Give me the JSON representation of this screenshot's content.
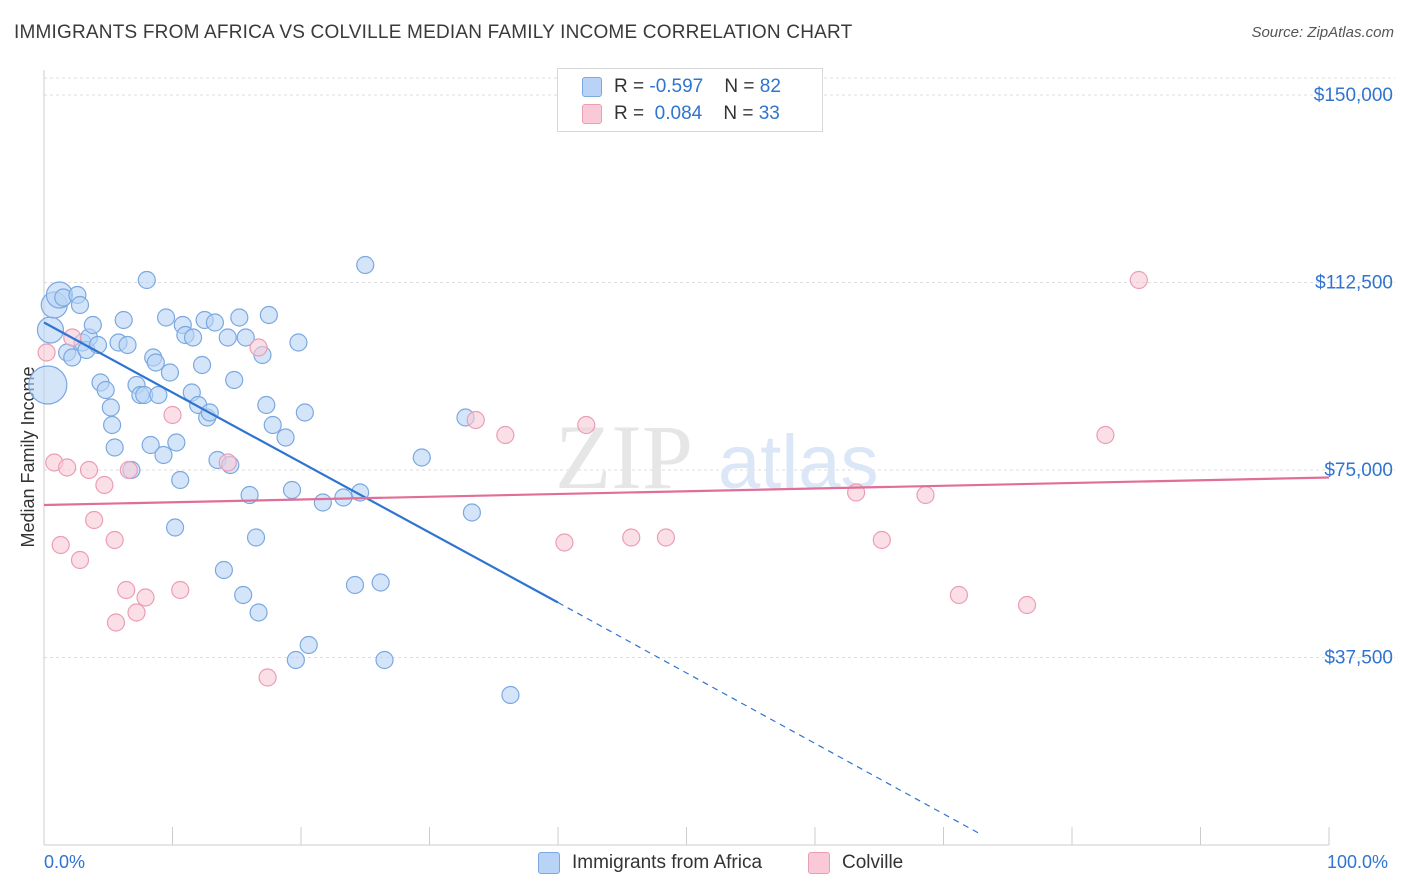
{
  "title": "IMMIGRANTS FROM AFRICA VS COLVILLE MEDIAN FAMILY INCOME CORRELATION CHART",
  "source": "Source: ZipAtlas.com",
  "watermark": {
    "zip": "ZIP",
    "atlas": "atlas"
  },
  "legend_top": [
    {
      "r_label": "R = ",
      "r_value": "-0.597",
      "n_label": "N = ",
      "n_value": "82"
    },
    {
      "r_label": "R = ",
      "r_value": "0.084",
      "n_label": "N = ",
      "n_value": "33"
    }
  ],
  "colors": {
    "blue_fill": "#b8d3f5",
    "blue_stroke": "#7aa8e0",
    "blue_line": "#2f74d0",
    "pink_fill": "#f9c9d7",
    "pink_stroke": "#eb9db4",
    "pink_line": "#e06e98",
    "axis_label": "#2f74d0",
    "grid": "#dddddd"
  },
  "chart_data": {
    "type": "scatter",
    "title": "IMMIGRANTS FROM AFRICA VS COLVILLE MEDIAN FAMILY INCOME CORRELATION CHART",
    "xlabel": "",
    "ylabel": "Median Family Income",
    "xlim": [
      0,
      100
    ],
    "ylim": [
      0,
      155000
    ],
    "x_tick_labels": [
      "0.0%",
      "100.0%"
    ],
    "y_ticks": [
      37500,
      75000,
      112500,
      150000
    ],
    "y_tick_labels": [
      "$37,500",
      "$75,000",
      "$112,500",
      "$150,000"
    ],
    "grid": true,
    "series": [
      {
        "name": "Immigrants from Africa",
        "color": "blue",
        "r": -0.597,
        "n": 82,
        "trend": {
          "x0": 0,
          "y0": 104500,
          "x1": 40,
          "y1": 48500,
          "dash_x1": 73,
          "dash_y1": 2000
        },
        "points": [
          [
            0.3,
            92000,
            3
          ],
          [
            0.5,
            103000,
            2
          ],
          [
            0.8,
            108000,
            2
          ],
          [
            1.2,
            110000,
            2
          ],
          [
            1.5,
            109500,
            1
          ],
          [
            1.8,
            98500,
            1
          ],
          [
            2.2,
            97500,
            1
          ],
          [
            2.6,
            110000,
            1
          ],
          [
            2.8,
            108000,
            1
          ],
          [
            3.0,
            100500,
            1
          ],
          [
            3.3,
            99000,
            1
          ],
          [
            3.5,
            101500,
            1
          ],
          [
            3.8,
            104000,
            1
          ],
          [
            4.2,
            100000,
            1
          ],
          [
            4.4,
            92500,
            1
          ],
          [
            4.8,
            91000,
            1
          ],
          [
            5.2,
            87500,
            1
          ],
          [
            5.3,
            84000,
            1
          ],
          [
            5.5,
            79500,
            1
          ],
          [
            5.8,
            100500,
            1
          ],
          [
            6.2,
            105000,
            1
          ],
          [
            6.5,
            100000,
            1
          ],
          [
            6.8,
            75000,
            1
          ],
          [
            7.2,
            92000,
            1
          ],
          [
            7.5,
            90000,
            1
          ],
          [
            7.8,
            90000,
            1
          ],
          [
            8.0,
            113000,
            1
          ],
          [
            8.3,
            80000,
            1
          ],
          [
            8.5,
            97500,
            1
          ],
          [
            8.7,
            96500,
            1
          ],
          [
            8.9,
            90000,
            1
          ],
          [
            9.3,
            78000,
            1
          ],
          [
            9.5,
            105500,
            1
          ],
          [
            9.8,
            94500,
            1
          ],
          [
            10.2,
            63500,
            1
          ],
          [
            10.3,
            80500,
            1
          ],
          [
            10.6,
            73000,
            1
          ],
          [
            10.8,
            104000,
            1
          ],
          [
            11.0,
            102000,
            1
          ],
          [
            11.5,
            90500,
            1
          ],
          [
            11.6,
            101500,
            1
          ],
          [
            12.0,
            88000,
            1
          ],
          [
            12.3,
            96000,
            1
          ],
          [
            12.5,
            105000,
            1
          ],
          [
            12.7,
            85500,
            1
          ],
          [
            12.9,
            86500,
            1
          ],
          [
            13.3,
            104500,
            1
          ],
          [
            13.5,
            77000,
            1
          ],
          [
            14.0,
            55000,
            1
          ],
          [
            14.3,
            101500,
            1
          ],
          [
            14.5,
            76000,
            1
          ],
          [
            14.8,
            93000,
            1
          ],
          [
            15.2,
            105500,
            1
          ],
          [
            15.5,
            50000,
            1
          ],
          [
            15.7,
            101500,
            1
          ],
          [
            16.0,
            70000,
            1
          ],
          [
            16.5,
            61500,
            1
          ],
          [
            16.7,
            46500,
            1
          ],
          [
            17.0,
            98000,
            1
          ],
          [
            17.3,
            88000,
            1
          ],
          [
            17.5,
            106000,
            1
          ],
          [
            17.8,
            84000,
            1
          ],
          [
            18.8,
            81500,
            1
          ],
          [
            19.3,
            71000,
            1
          ],
          [
            19.6,
            37000,
            1
          ],
          [
            19.8,
            100500,
            1
          ],
          [
            20.3,
            86500,
            1
          ],
          [
            20.6,
            40000,
            1
          ],
          [
            21.7,
            68500,
            1
          ],
          [
            23.3,
            69500,
            1
          ],
          [
            24.2,
            52000,
            1
          ],
          [
            24.6,
            70500,
            1
          ],
          [
            25.0,
            116000,
            1
          ],
          [
            26.2,
            52500,
            1
          ],
          [
            26.5,
            37000,
            1
          ],
          [
            29.4,
            77500,
            1
          ],
          [
            32.8,
            85500,
            1
          ],
          [
            33.3,
            66500,
            1
          ],
          [
            36.3,
            30000,
            1
          ]
        ]
      },
      {
        "name": "Colville",
        "color": "pink",
        "r": 0.084,
        "n": 33,
        "trend": {
          "x0": 0,
          "y0": 68000,
          "x1": 100,
          "y1": 73500
        },
        "points": [
          [
            0.2,
            98500
          ],
          [
            0.8,
            76500
          ],
          [
            1.3,
            60000
          ],
          [
            1.8,
            75500
          ],
          [
            2.2,
            101500
          ],
          [
            2.8,
            57000
          ],
          [
            3.5,
            75000
          ],
          [
            3.9,
            65000
          ],
          [
            4.7,
            72000
          ],
          [
            5.5,
            61000
          ],
          [
            5.6,
            44500
          ],
          [
            6.4,
            51000
          ],
          [
            6.6,
            75000
          ],
          [
            7.2,
            46500
          ],
          [
            7.9,
            49500
          ],
          [
            10.0,
            86000
          ],
          [
            10.6,
            51000
          ],
          [
            14.3,
            76500
          ],
          [
            16.7,
            99500
          ],
          [
            17.4,
            33500
          ],
          [
            33.6,
            85000
          ],
          [
            35.9,
            82000
          ],
          [
            40.5,
            60500
          ],
          [
            42.2,
            84000
          ],
          [
            45.7,
            61500
          ],
          [
            48.4,
            61500
          ],
          [
            63.2,
            70500
          ],
          [
            65.2,
            61000
          ],
          [
            68.6,
            70000
          ],
          [
            71.2,
            50000
          ],
          [
            76.5,
            48000
          ],
          [
            82.6,
            82000
          ],
          [
            85.2,
            113000
          ]
        ]
      }
    ]
  },
  "legend_bottom": [
    {
      "label": "Immigrants from Africa",
      "color": "blue"
    },
    {
      "label": "Colville",
      "color": "pink"
    }
  ]
}
